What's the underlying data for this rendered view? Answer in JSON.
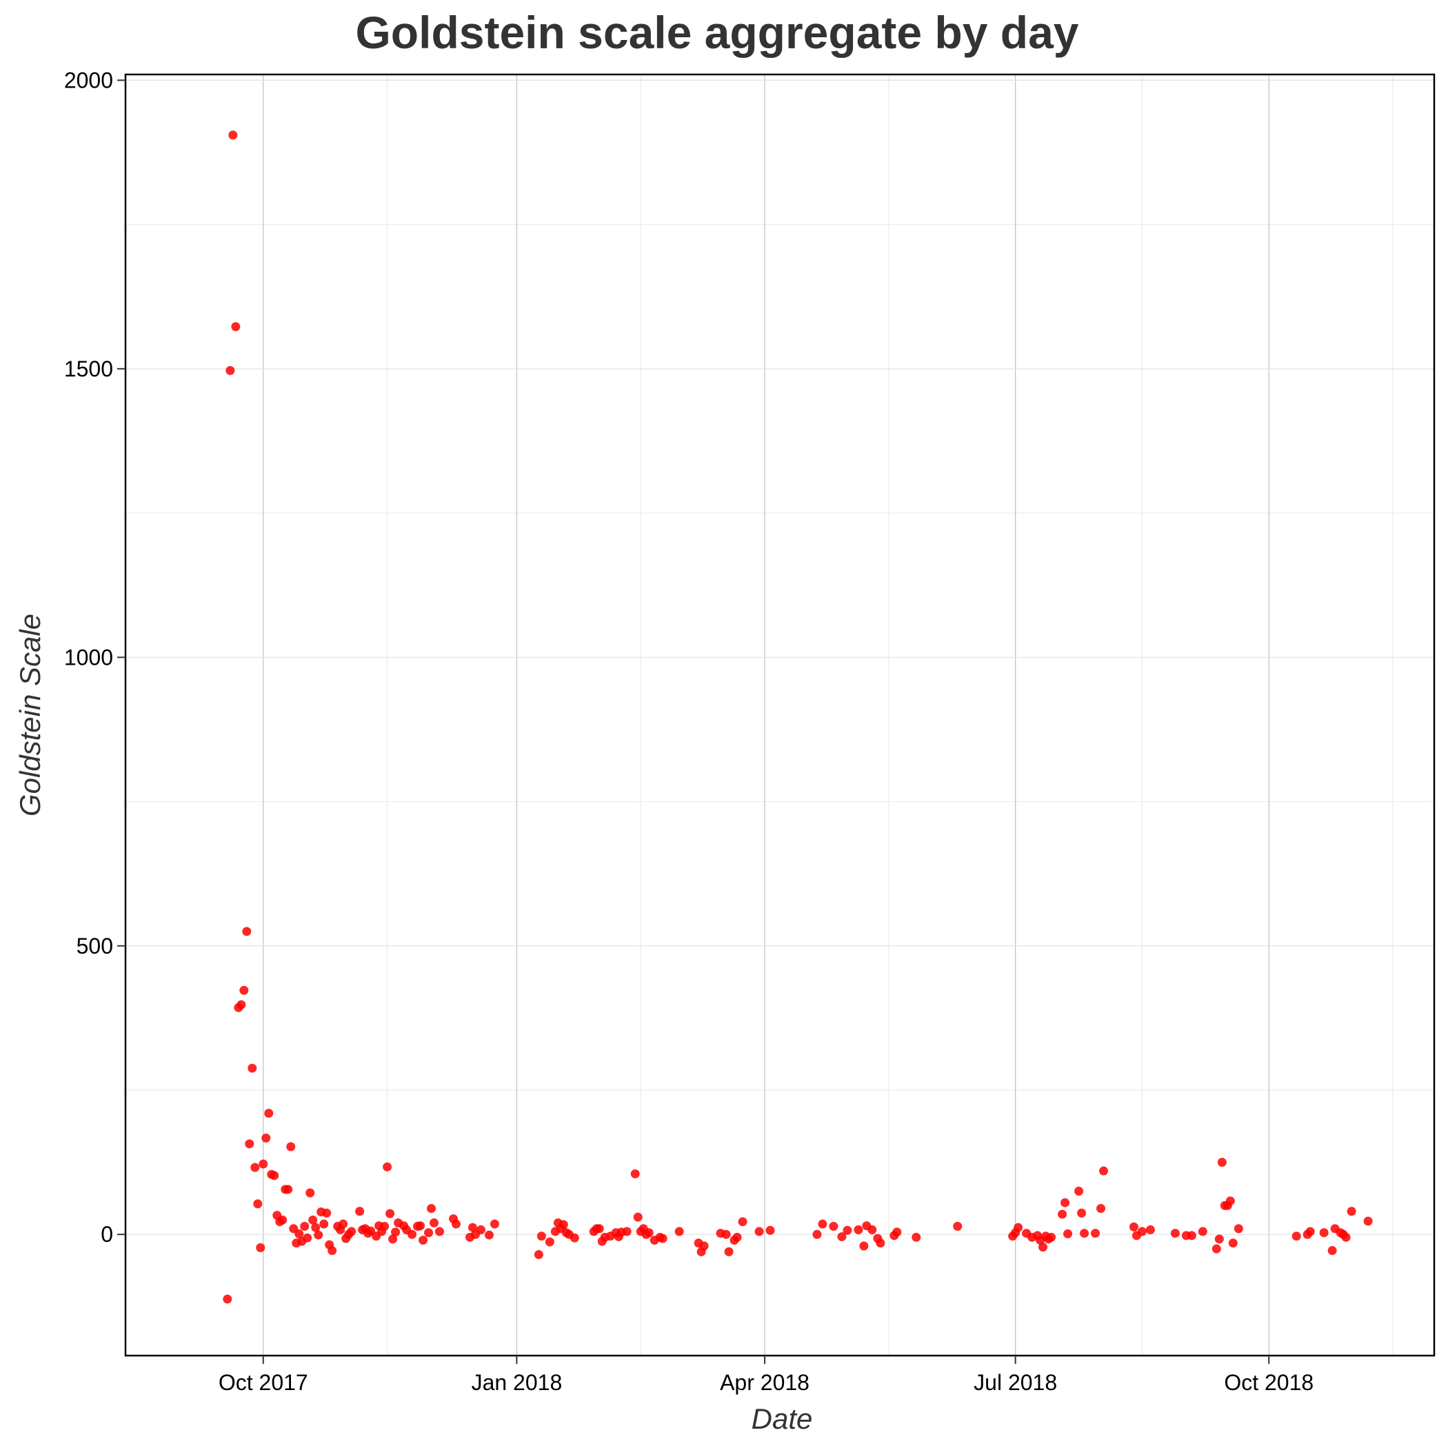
{
  "chart_data": {
    "type": "scatter",
    "title": "Goldstein scale aggregate by day",
    "xlabel": "Date",
    "ylabel": "Goldstein Scale",
    "xlim": [
      "2017-08-12",
      "2018-11-30"
    ],
    "ylim": [
      -210,
      2010
    ],
    "x_ticks": [
      {
        "date": "2017-10-01",
        "label": "Oct 2017"
      },
      {
        "date": "2018-01-01",
        "label": "Jan 2018"
      },
      {
        "date": "2018-04-01",
        "label": "Apr 2018"
      },
      {
        "date": "2018-07-01",
        "label": "Jul 2018"
      },
      {
        "date": "2018-10-01",
        "label": "Oct 2018"
      }
    ],
    "x_minor_grid": [
      "2017-11-15",
      "2018-02-15",
      "2018-05-16",
      "2018-08-16",
      "2018-11-15"
    ],
    "y_ticks": [
      {
        "value": 0,
        "label": "0"
      },
      {
        "value": 500,
        "label": "500"
      },
      {
        "value": 1000,
        "label": "1000"
      },
      {
        "value": 1500,
        "label": "1500"
      },
      {
        "value": 2000,
        "label": "2000"
      }
    ],
    "y_minor_grid": [
      250,
      750,
      1250,
      1750
    ],
    "grid": true,
    "point_color": "#ff0000",
    "points": [
      [
        "2017-09-18",
        -112
      ],
      [
        "2017-09-19",
        1497
      ],
      [
        "2017-09-20",
        1905
      ],
      [
        "2017-09-21",
        1573
      ],
      [
        "2017-09-22",
        393
      ],
      [
        "2017-09-23",
        398
      ],
      [
        "2017-09-24",
        423
      ],
      [
        "2017-09-25",
        525
      ],
      [
        "2017-09-26",
        157
      ],
      [
        "2017-09-27",
        288
      ],
      [
        "2017-09-28",
        116
      ],
      [
        "2017-09-29",
        53
      ],
      [
        "2017-09-30",
        -23
      ],
      [
        "2017-10-01",
        122
      ],
      [
        "2017-10-02",
        167
      ],
      [
        "2017-10-03",
        210
      ],
      [
        "2017-10-04",
        104
      ],
      [
        "2017-10-05",
        102
      ],
      [
        "2017-10-06",
        33
      ],
      [
        "2017-10-07",
        22
      ],
      [
        "2017-10-08",
        25
      ],
      [
        "2017-10-09",
        78
      ],
      [
        "2017-10-10",
        78
      ],
      [
        "2017-10-11",
        152
      ],
      [
        "2017-10-12",
        10
      ],
      [
        "2017-10-13",
        -15
      ],
      [
        "2017-10-14",
        1
      ],
      [
        "2017-10-15",
        -12
      ],
      [
        "2017-10-16",
        14
      ],
      [
        "2017-10-17",
        -6
      ],
      [
        "2017-10-18",
        72
      ],
      [
        "2017-10-19",
        25
      ],
      [
        "2017-10-20",
        12
      ],
      [
        "2017-10-21",
        -1
      ],
      [
        "2017-10-22",
        39
      ],
      [
        "2017-10-23",
        18
      ],
      [
        "2017-10-24",
        37
      ],
      [
        "2017-10-25",
        -18
      ],
      [
        "2017-10-26",
        -28
      ],
      [
        "2017-10-28",
        14
      ],
      [
        "2017-10-29",
        8
      ],
      [
        "2017-10-30",
        18
      ],
      [
        "2017-10-31",
        -7
      ],
      [
        "2017-11-01",
        0
      ],
      [
        "2017-11-02",
        5
      ],
      [
        "2017-11-05",
        40
      ],
      [
        "2017-11-06",
        8
      ],
      [
        "2017-11-07",
        10
      ],
      [
        "2017-11-08",
        2
      ],
      [
        "2017-11-09",
        6
      ],
      [
        "2017-11-11",
        -3
      ],
      [
        "2017-11-12",
        15
      ],
      [
        "2017-11-13",
        5
      ],
      [
        "2017-11-14",
        14
      ],
      [
        "2017-11-15",
        117
      ],
      [
        "2017-11-16",
        36
      ],
      [
        "2017-11-17",
        -8
      ],
      [
        "2017-11-18",
        4
      ],
      [
        "2017-11-19",
        20
      ],
      [
        "2017-11-21",
        15
      ],
      [
        "2017-11-22",
        8
      ],
      [
        "2017-11-24",
        0
      ],
      [
        "2017-11-26",
        14
      ],
      [
        "2017-11-27",
        15
      ],
      [
        "2017-11-28",
        -10
      ],
      [
        "2017-11-30",
        3
      ],
      [
        "2017-12-01",
        45
      ],
      [
        "2017-12-02",
        20
      ],
      [
        "2017-12-04",
        5
      ],
      [
        "2017-12-09",
        27
      ],
      [
        "2017-12-10",
        18
      ],
      [
        "2017-12-15",
        -5
      ],
      [
        "2017-12-16",
        12
      ],
      [
        "2017-12-17",
        0
      ],
      [
        "2017-12-19",
        8
      ],
      [
        "2017-12-22",
        -1
      ],
      [
        "2017-12-24",
        18
      ],
      [
        "2018-01-09",
        -35
      ],
      [
        "2018-01-10",
        -3
      ],
      [
        "2018-01-13",
        -13
      ],
      [
        "2018-01-15",
        5
      ],
      [
        "2018-01-16",
        20
      ],
      [
        "2018-01-17",
        10
      ],
      [
        "2018-01-18",
        17
      ],
      [
        "2018-01-19",
        3
      ],
      [
        "2018-01-20",
        0
      ],
      [
        "2018-01-22",
        -6
      ],
      [
        "2018-01-29",
        5
      ],
      [
        "2018-01-30",
        10
      ],
      [
        "2018-01-31",
        10
      ],
      [
        "2018-02-01",
        -12
      ],
      [
        "2018-02-02",
        -5
      ],
      [
        "2018-02-04",
        -3
      ],
      [
        "2018-02-06",
        3
      ],
      [
        "2018-02-07",
        -4
      ],
      [
        "2018-02-08",
        4
      ],
      [
        "2018-02-10",
        5
      ],
      [
        "2018-02-13",
        105
      ],
      [
        "2018-02-14",
        30
      ],
      [
        "2018-02-15",
        5
      ],
      [
        "2018-02-16",
        10
      ],
      [
        "2018-02-17",
        0
      ],
      [
        "2018-02-18",
        3
      ],
      [
        "2018-02-20",
        -10
      ],
      [
        "2018-02-22",
        -5
      ],
      [
        "2018-02-23",
        -7
      ],
      [
        "2018-03-01",
        5
      ],
      [
        "2018-03-08",
        -15
      ],
      [
        "2018-03-09",
        -30
      ],
      [
        "2018-03-10",
        -20
      ],
      [
        "2018-03-16",
        2
      ],
      [
        "2018-03-18",
        0
      ],
      [
        "2018-03-19",
        -30
      ],
      [
        "2018-03-21",
        -10
      ],
      [
        "2018-03-22",
        -5
      ],
      [
        "2018-03-24",
        22
      ],
      [
        "2018-03-30",
        5
      ],
      [
        "2018-04-03",
        7
      ],
      [
        "2018-04-20",
        0
      ],
      [
        "2018-04-22",
        18
      ],
      [
        "2018-04-26",
        14
      ],
      [
        "2018-04-29",
        -4
      ],
      [
        "2018-05-01",
        7
      ],
      [
        "2018-05-05",
        8
      ],
      [
        "2018-05-07",
        -20
      ],
      [
        "2018-05-08",
        15
      ],
      [
        "2018-05-10",
        8
      ],
      [
        "2018-05-12",
        -7
      ],
      [
        "2018-05-13",
        -15
      ],
      [
        "2018-05-18",
        -2
      ],
      [
        "2018-05-19",
        4
      ],
      [
        "2018-05-26",
        -5
      ],
      [
        "2018-06-10",
        14
      ],
      [
        "2018-06-30",
        -3
      ],
      [
        "2018-07-01",
        3
      ],
      [
        "2018-07-02",
        12
      ],
      [
        "2018-07-05",
        2
      ],
      [
        "2018-07-07",
        -5
      ],
      [
        "2018-07-09",
        -2
      ],
      [
        "2018-07-10",
        -10
      ],
      [
        "2018-07-11",
        -22
      ],
      [
        "2018-07-12",
        -3
      ],
      [
        "2018-07-13",
        -8
      ],
      [
        "2018-07-14",
        -5
      ],
      [
        "2018-07-18",
        35
      ],
      [
        "2018-07-19",
        55
      ],
      [
        "2018-07-20",
        1
      ],
      [
        "2018-07-24",
        75
      ],
      [
        "2018-07-25",
        37
      ],
      [
        "2018-07-26",
        2
      ],
      [
        "2018-07-30",
        2
      ],
      [
        "2018-08-01",
        45
      ],
      [
        "2018-08-02",
        110
      ],
      [
        "2018-08-13",
        13
      ],
      [
        "2018-08-14",
        -2
      ],
      [
        "2018-08-16",
        5
      ],
      [
        "2018-08-19",
        8
      ],
      [
        "2018-08-28",
        2
      ],
      [
        "2018-09-01",
        -2
      ],
      [
        "2018-09-03",
        -2
      ],
      [
        "2018-09-07",
        5
      ],
      [
        "2018-09-12",
        -25
      ],
      [
        "2018-09-13",
        -8
      ],
      [
        "2018-09-14",
        125
      ],
      [
        "2018-09-15",
        50
      ],
      [
        "2018-09-16",
        50
      ],
      [
        "2018-09-17",
        58
      ],
      [
        "2018-09-18",
        -15
      ],
      [
        "2018-09-20",
        10
      ],
      [
        "2018-10-11",
        -3
      ],
      [
        "2018-10-15",
        0
      ],
      [
        "2018-10-16",
        5
      ],
      [
        "2018-10-21",
        3
      ],
      [
        "2018-10-24",
        -28
      ],
      [
        "2018-10-25",
        10
      ],
      [
        "2018-10-27",
        3
      ],
      [
        "2018-10-28",
        0
      ],
      [
        "2018-10-29",
        -5
      ],
      [
        "2018-10-31",
        40
      ],
      [
        "2018-11-06",
        23
      ]
    ]
  }
}
